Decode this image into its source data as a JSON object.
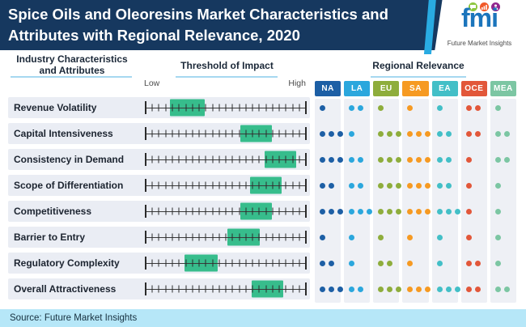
{
  "header": {
    "title_line1": "Spice Oils and Oleoresins Market Characteristics and",
    "title_line2": "Attributes with Regional Relevance, 2020",
    "logo": {
      "wordmark": "fmi",
      "tagline": "Future Market Insights",
      "badge_colors": [
        "#8dc63f",
        "#f15a29",
        "#92278f"
      ],
      "badge_icons": [
        "chat-icon",
        "chart-icon",
        "person-icon"
      ]
    }
  },
  "columns": {
    "attributes_header": "Industry Characteristics and Attributes",
    "impact_header": "Threshold of Impact",
    "regional_header": "Regional Relevance",
    "low_label": "Low",
    "high_label": "High"
  },
  "regions": [
    {
      "code": "NA",
      "color": "#1d5fa5"
    },
    {
      "code": "LA",
      "color": "#2ba7dd"
    },
    {
      "code": "EU",
      "color": "#8ead3c"
    },
    {
      "code": "SA",
      "color": "#f69a22"
    },
    {
      "code": "EA",
      "color": "#43bfc7"
    },
    {
      "code": "OCE",
      "color": "#e2573a"
    },
    {
      "code": "MEA",
      "color": "#7cc6a3"
    }
  ],
  "rows": [
    {
      "label": "Revenue Volatility",
      "impact_pct": [
        15,
        37
      ],
      "relevance": [
        1,
        2,
        1,
        1,
        1,
        2,
        1
      ]
    },
    {
      "label": "Capital Intensiveness",
      "impact_pct": [
        59,
        79
      ],
      "relevance": [
        3,
        1,
        3,
        3,
        2,
        2,
        2
      ]
    },
    {
      "label": "Consistency in Demand",
      "impact_pct": [
        74,
        94
      ],
      "relevance": [
        3,
        2,
        3,
        3,
        2,
        1,
        2
      ]
    },
    {
      "label": "Scope of Differentiation",
      "impact_pct": [
        65,
        85
      ],
      "relevance": [
        2,
        2,
        3,
        3,
        2,
        1,
        1
      ]
    },
    {
      "label": "Competitiveness",
      "impact_pct": [
        59,
        79
      ],
      "relevance": [
        3,
        3,
        3,
        3,
        3,
        1,
        1
      ]
    },
    {
      "label": "Barrier to Entry",
      "impact_pct": [
        51,
        71
      ],
      "relevance": [
        1,
        1,
        1,
        1,
        1,
        1,
        1
      ]
    },
    {
      "label": "Regulatory Complexity",
      "impact_pct": [
        24,
        45
      ],
      "relevance": [
        2,
        1,
        2,
        1,
        1,
        2,
        1
      ]
    },
    {
      "label": "Overall Attractiveness",
      "impact_pct": [
        66,
        86
      ],
      "relevance": [
        3,
        2,
        3,
        3,
        3,
        2,
        2
      ]
    }
  ],
  "footer": {
    "source": "Source: Future Market Insights"
  },
  "chart_data": {
    "type": "table",
    "title": "Spice Oils and Oleoresins Market Characteristics and Attributes with Regional Relevance, 2020",
    "row_labels": [
      "Revenue Volatility",
      "Capital Intensiveness",
      "Consistency in Demand",
      "Scope of Differentiation",
      "Competitiveness",
      "Barrier to Entry",
      "Regulatory Complexity",
      "Overall Attractiveness"
    ],
    "impact_axis": {
      "label": "Threshold of Impact",
      "min_label": "Low",
      "max_label": "High",
      "range": [
        0,
        100
      ]
    },
    "impact_ranges_pct": [
      [
        15,
        37
      ],
      [
        59,
        79
      ],
      [
        74,
        94
      ],
      [
        65,
        85
      ],
      [
        59,
        79
      ],
      [
        51,
        71
      ],
      [
        24,
        45
      ],
      [
        66,
        86
      ]
    ],
    "regions": [
      "NA",
      "LA",
      "EU",
      "SA",
      "EA",
      "OCE",
      "MEA"
    ],
    "relevance_dots": [
      [
        1,
        2,
        1,
        1,
        1,
        2,
        1
      ],
      [
        3,
        1,
        3,
        3,
        2,
        2,
        2
      ],
      [
        3,
        2,
        3,
        3,
        2,
        1,
        2
      ],
      [
        2,
        2,
        3,
        3,
        2,
        1,
        1
      ],
      [
        3,
        3,
        3,
        3,
        3,
        1,
        1
      ],
      [
        1,
        1,
        1,
        1,
        1,
        1,
        1
      ],
      [
        2,
        1,
        2,
        1,
        1,
        2,
        1
      ],
      [
        3,
        2,
        3,
        3,
        3,
        2,
        2
      ]
    ],
    "source": "Source: Future Market Insights"
  }
}
